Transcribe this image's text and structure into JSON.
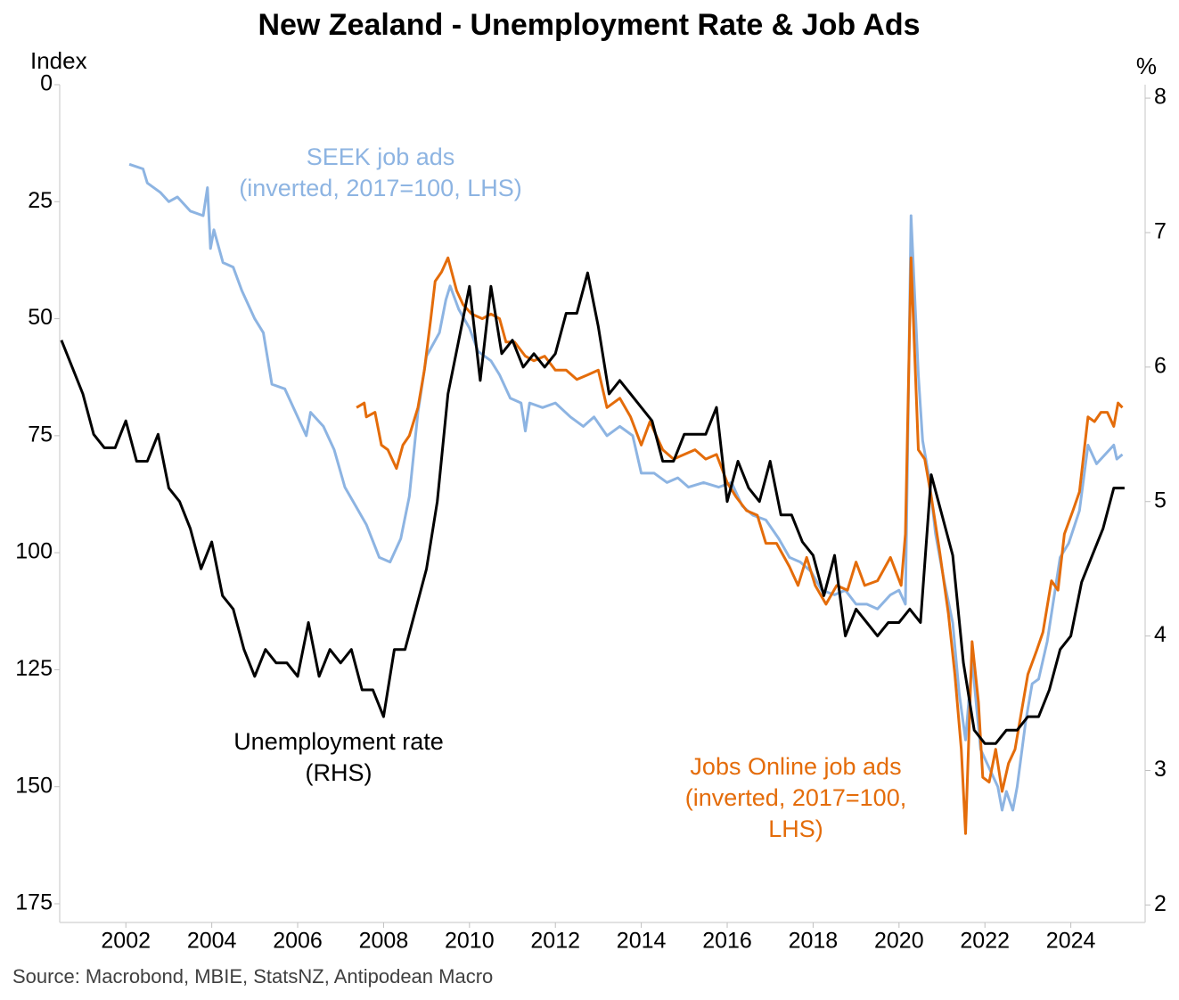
{
  "chart_data": {
    "type": "line",
    "title": "New Zealand - Unemployment Rate & Job Ads",
    "y_label": "Index",
    "y2_label": "%",
    "source": "Source: Macrobond, MBIE, StatsNZ, Antipodean Macro",
    "xlim": [
      2000.46,
      2025.73
    ],
    "xticks": [
      2002,
      2004,
      2006,
      2008,
      2010,
      2012,
      2014,
      2016,
      2018,
      2020,
      2022,
      2024
    ],
    "ylim": [
      0,
      179
    ],
    "y_inverted": true,
    "yticks": [
      0,
      25,
      50,
      75,
      100,
      125,
      150,
      175
    ],
    "y2lim": [
      1.87,
      8.1
    ],
    "y2ticks": [
      2,
      3,
      4,
      5,
      6,
      7,
      8
    ],
    "grid": false,
    "series": [
      {
        "name": "SEEK job ads",
        "color": "#8db4e2",
        "axis": "y",
        "x": [
          2002.08,
          2002.4,
          2002.5,
          2002.8,
          2003.0,
          2003.2,
          2003.5,
          2003.8,
          2003.9,
          2003.97,
          2004.05,
          2004.26,
          2004.5,
          2004.7,
          2005.0,
          2005.2,
          2005.4,
          2005.7,
          2005.9,
          2006.2,
          2006.3,
          2006.6,
          2006.85,
          2007.1,
          2007.35,
          2007.6,
          2007.9,
          2008.15,
          2008.4,
          2008.6,
          2008.8,
          2009.0,
          2009.3,
          2009.45,
          2009.55,
          2009.75,
          2010.0,
          2010.2,
          2010.5,
          2010.7,
          2010.95,
          2011.2,
          2011.3,
          2011.4,
          2011.7,
          2012.0,
          2012.35,
          2012.65,
          2012.9,
          2013.2,
          2013.5,
          2013.8,
          2014.0,
          2014.3,
          2014.6,
          2014.85,
          2015.1,
          2015.45,
          2015.8,
          2016.1,
          2016.35,
          2016.6,
          2016.9,
          2017.2,
          2017.45,
          2017.7,
          2017.95,
          2018.2,
          2018.5,
          2018.75,
          2019.0,
          2019.25,
          2019.5,
          2019.8,
          2020.0,
          2020.15,
          2020.28,
          2020.45,
          2020.55,
          2020.7,
          2020.85,
          2021.05,
          2021.25,
          2021.4,
          2021.55,
          2021.7,
          2021.9,
          2022.1,
          2022.3,
          2022.4,
          2022.5,
          2022.65,
          2022.75,
          2022.95,
          2023.1,
          2023.25,
          2023.45,
          2023.75,
          2023.95,
          2024.2,
          2024.4,
          2024.6,
          2024.9,
          2025.0,
          2025.07,
          2025.2
        ],
        "values": [
          17,
          18,
          21,
          23,
          25,
          24,
          27,
          28,
          22,
          35,
          31,
          38,
          39,
          44,
          50,
          53,
          64,
          65,
          69,
          75,
          70,
          73,
          78,
          86,
          90,
          94,
          101,
          102,
          97,
          88,
          70,
          58,
          53,
          46,
          43,
          48,
          52,
          57,
          59,
          62,
          67,
          68,
          74,
          68,
          69,
          68,
          71,
          73,
          71,
          75,
          73,
          75,
          83,
          83,
          85,
          84,
          86,
          85,
          86,
          85,
          90,
          92,
          93,
          97,
          101,
          102,
          104,
          108,
          109,
          108,
          111,
          111,
          112,
          109,
          108,
          111,
          28,
          62,
          76,
          84,
          96,
          106,
          115,
          130,
          140,
          123,
          142,
          146,
          150,
          155,
          151,
          155,
          150,
          136,
          128,
          127,
          119,
          101,
          98,
          91,
          77,
          81,
          78,
          77,
          80,
          79
        ]
      },
      {
        "name": "Jobs Online job ads",
        "color": "#e46c0a",
        "axis": "y",
        "x": [
          2007.37,
          2007.55,
          2007.6,
          2007.8,
          2007.95,
          2008.1,
          2008.3,
          2008.45,
          2008.6,
          2008.8,
          2008.95,
          2009.1,
          2009.2,
          2009.35,
          2009.5,
          2009.7,
          2009.85,
          2010.05,
          2010.3,
          2010.5,
          2010.7,
          2010.85,
          2011.05,
          2011.3,
          2011.5,
          2011.75,
          2012.0,
          2012.25,
          2012.5,
          2012.75,
          2013.0,
          2013.2,
          2013.5,
          2013.75,
          2014.0,
          2014.2,
          2014.5,
          2014.75,
          2015.0,
          2015.25,
          2015.5,
          2015.75,
          2016.0,
          2016.2,
          2016.45,
          2016.7,
          2016.9,
          2017.15,
          2017.45,
          2017.65,
          2017.85,
          2018.05,
          2018.3,
          2018.55,
          2018.8,
          2019.0,
          2019.2,
          2019.5,
          2019.8,
          2020.05,
          2020.15,
          2020.28,
          2020.45,
          2020.6,
          2020.75,
          2020.95,
          2021.15,
          2021.3,
          2021.45,
          2021.55,
          2021.7,
          2021.85,
          2021.95,
          2022.1,
          2022.25,
          2022.4,
          2022.55,
          2022.7,
          2022.85,
          2023.0,
          2023.2,
          2023.35,
          2023.55,
          2023.7,
          2023.85,
          2024.05,
          2024.2,
          2024.4,
          2024.55,
          2024.7,
          2024.85,
          2025.0,
          2025.1,
          2025.2
        ],
        "values": [
          69,
          68,
          71,
          70,
          77,
          78,
          82,
          77,
          75,
          69,
          61,
          50,
          42,
          40,
          37,
          44,
          47,
          49,
          50,
          49,
          50,
          55,
          55,
          58,
          59,
          58,
          61,
          61,
          63,
          62,
          61,
          69,
          67,
          71,
          77,
          72,
          78,
          80,
          79,
          78,
          80,
          79,
          85,
          88,
          91,
          92,
          98,
          98,
          103,
          107,
          101,
          107,
          111,
          107,
          108,
          102,
          107,
          106,
          101,
          107,
          96,
          37,
          78,
          80,
          88,
          100,
          113,
          126,
          142,
          160,
          119,
          132,
          148,
          149,
          142,
          151,
          145,
          142,
          134,
          126,
          121,
          117,
          106,
          108,
          96,
          91,
          87,
          71,
          72,
          70,
          70,
          73,
          68,
          69
        ]
      },
      {
        "name": "Unemployment rate",
        "color": "#000000",
        "axis": "y2",
        "x": [
          2000.5,
          2000.75,
          2001,
          2001.25,
          2001.5,
          2001.75,
          2002,
          2002.25,
          2002.5,
          2002.75,
          2003,
          2003.25,
          2003.5,
          2003.75,
          2004,
          2004.25,
          2004.5,
          2004.75,
          2005,
          2005.25,
          2005.5,
          2005.75,
          2006,
          2006.25,
          2006.5,
          2006.75,
          2007,
          2007.25,
          2007.5,
          2007.75,
          2008,
          2008.25,
          2008.5,
          2008.75,
          2009,
          2009.25,
          2009.5,
          2009.75,
          2010,
          2010.25,
          2010.5,
          2010.75,
          2011,
          2011.25,
          2011.5,
          2011.75,
          2012,
          2012.25,
          2012.5,
          2012.75,
          2013,
          2013.25,
          2013.5,
          2013.75,
          2014,
          2014.25,
          2014.5,
          2014.75,
          2015,
          2015.25,
          2015.5,
          2015.75,
          2016,
          2016.25,
          2016.5,
          2016.75,
          2017,
          2017.25,
          2017.5,
          2017.75,
          2018,
          2018.25,
          2018.5,
          2018.75,
          2019,
          2019.25,
          2019.5,
          2019.75,
          2020,
          2020.25,
          2020.5,
          2020.75,
          2021,
          2021.25,
          2021.5,
          2021.75,
          2022,
          2022.25,
          2022.5,
          2022.75,
          2023,
          2023.25,
          2023.5,
          2023.75,
          2024,
          2024.25,
          2024.5,
          2024.75,
          2025,
          2025.25
        ],
        "values": [
          6.2,
          6.0,
          5.8,
          5.5,
          5.4,
          5.4,
          5.6,
          5.3,
          5.3,
          5.5,
          5.1,
          5.0,
          4.8,
          4.5,
          4.7,
          4.3,
          4.2,
          3.9,
          3.7,
          3.9,
          3.8,
          3.8,
          3.7,
          4.1,
          3.7,
          3.9,
          3.8,
          3.9,
          3.6,
          3.6,
          3.4,
          3.9,
          3.9,
          4.2,
          4.5,
          5.0,
          5.8,
          6.2,
          6.6,
          5.9,
          6.6,
          6.1,
          6.2,
          6.0,
          6.1,
          6.0,
          6.1,
          6.4,
          6.4,
          6.7,
          6.3,
          5.8,
          5.9,
          5.8,
          5.7,
          5.6,
          5.3,
          5.3,
          5.5,
          5.5,
          5.5,
          5.7,
          5.0,
          5.3,
          5.1,
          5.0,
          5.3,
          4.9,
          4.9,
          4.7,
          4.6,
          4.3,
          4.6,
          4.0,
          4.2,
          4.1,
          4.0,
          4.1,
          4.1,
          4.2,
          4.1,
          5.2,
          4.9,
          4.6,
          3.8,
          3.3,
          3.2,
          3.2,
          3.3,
          3.3,
          3.4,
          3.4,
          3.6,
          3.9,
          4.0,
          4.4,
          4.6,
          4.8,
          5.1,
          5.1
        ]
      }
    ],
    "annotations": [
      {
        "lines": [
          "SEEK job ads",
          "(inverted, 2017=100, LHS)"
        ],
        "color": "#8db4e2"
      },
      {
        "lines": [
          "Unemployment rate",
          "(RHS)"
        ],
        "color": "#000000"
      },
      {
        "lines": [
          "Jobs Online job ads",
          "(inverted, 2017=100,",
          "LHS)"
        ],
        "color": "#e46c0a"
      }
    ]
  }
}
